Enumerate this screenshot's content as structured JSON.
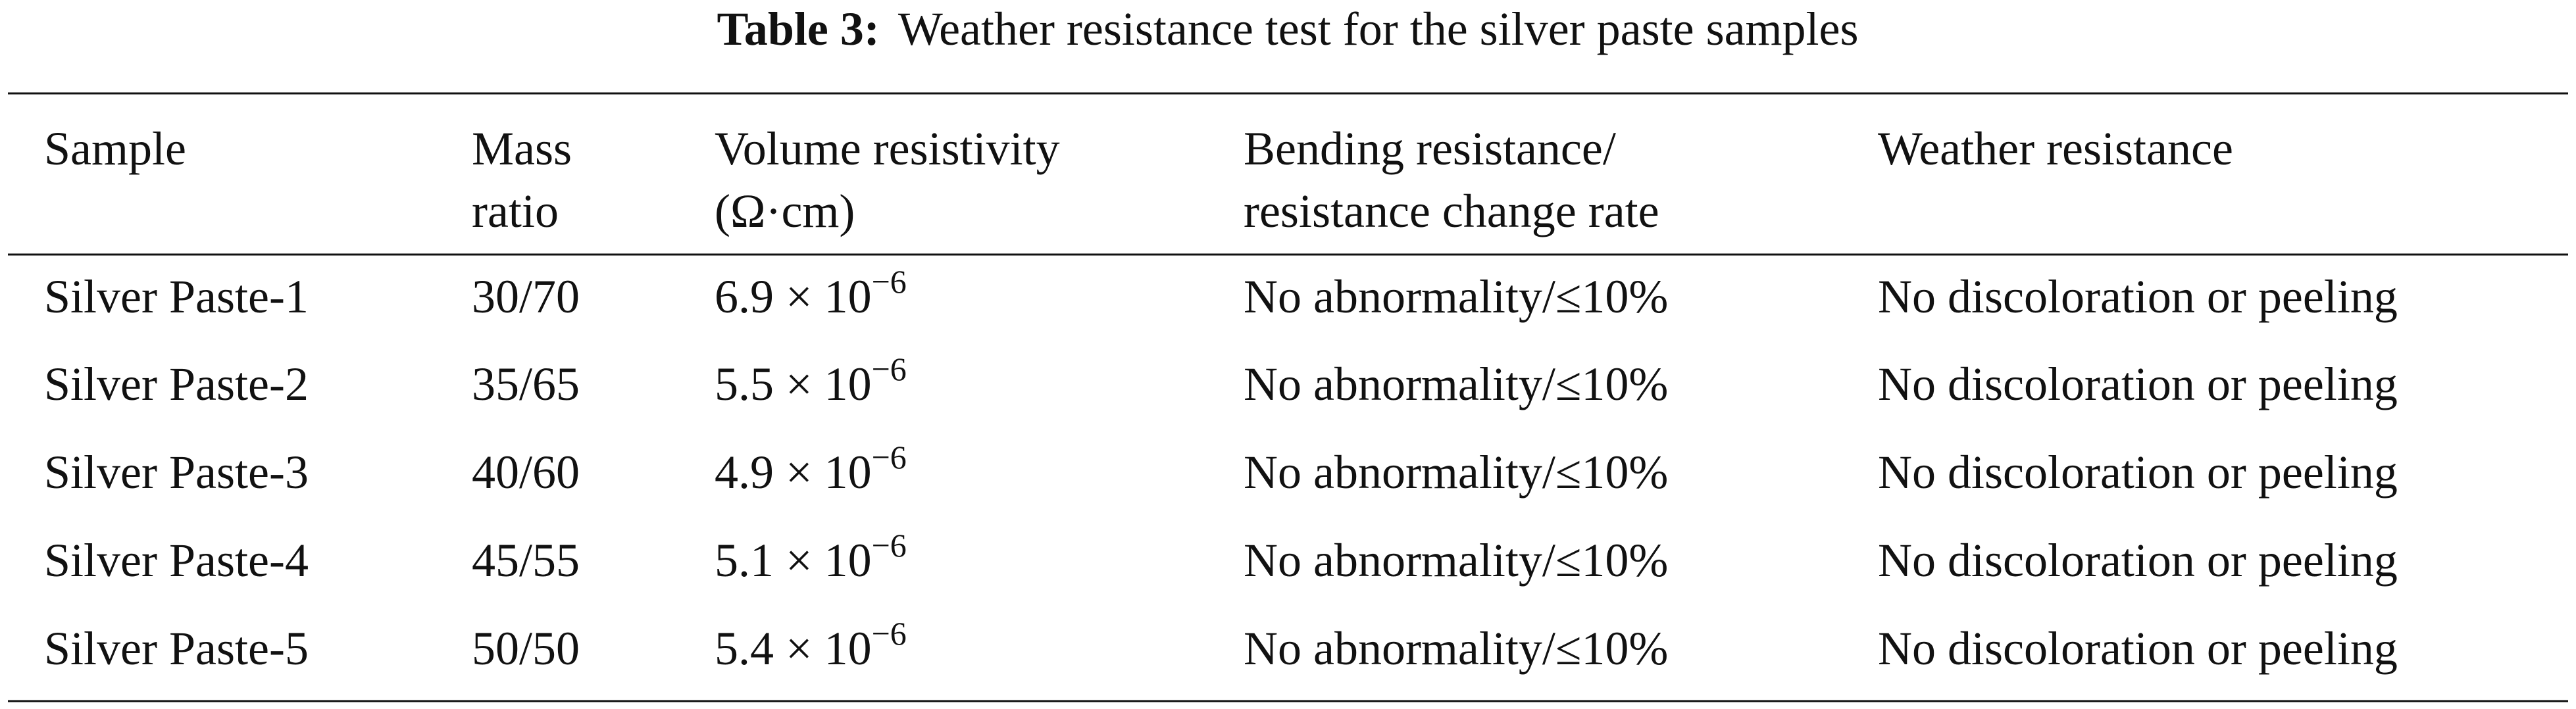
{
  "caption": {
    "label": "Table 3:",
    "text": "Weather resistance test for the silver paste samples"
  },
  "table": {
    "header": [
      [
        "Sample"
      ],
      [
        "Mass",
        "ratio"
      ],
      [
        "Volume resistivity",
        "(Ω·cm)"
      ],
      [
        "Bending resistance/",
        "resistance change rate"
      ],
      [
        "Weather resistance"
      ]
    ],
    "rows": [
      [
        "Silver Paste-1",
        "30/70",
        {
          "mantissa": "6.9 × 10",
          "exponent": "−6"
        },
        "No abnormality/≤10%",
        "No discoloration or peeling"
      ],
      [
        "Silver Paste-2",
        "35/65",
        {
          "mantissa": "5.5 × 10",
          "exponent": "−6"
        },
        "No abnormality/≤10%",
        "No discoloration or peeling"
      ],
      [
        "Silver Paste-3",
        "40/60",
        {
          "mantissa": "4.9 × 10",
          "exponent": "−6"
        },
        "No abnormality/≤10%",
        "No discoloration or peeling"
      ],
      [
        "Silver Paste-4",
        "45/55",
        {
          "mantissa": "5.1 × 10",
          "exponent": "−6"
        },
        "No abnormality/≤10%",
        "No discoloration or peeling"
      ],
      [
        "Silver Paste-5",
        "50/50",
        {
          "mantissa": "5.4 × 10",
          "exponent": "−6"
        },
        "No abnormality/≤10%",
        "No discoloration or peeling"
      ]
    ]
  }
}
